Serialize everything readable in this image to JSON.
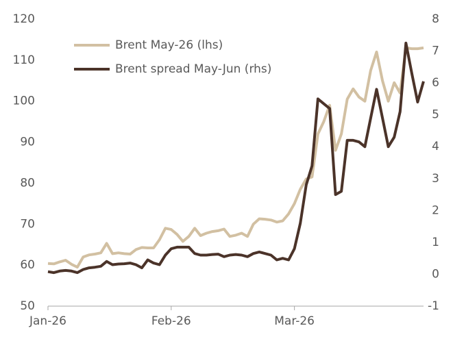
{
  "chart_data": {
    "type": "line",
    "x": [
      0,
      1,
      2,
      3,
      4,
      5,
      6,
      7,
      8,
      9,
      10,
      11,
      12,
      13,
      14,
      15,
      16,
      17,
      18,
      19,
      20,
      21,
      22,
      23,
      24,
      25,
      26,
      27,
      28,
      29,
      30,
      31,
      32,
      33,
      34,
      35,
      36,
      37,
      38,
      39,
      40,
      41,
      42,
      43,
      44,
      45,
      46,
      47,
      48,
      49,
      50,
      51,
      52,
      53,
      54,
      55,
      56,
      57,
      58,
      59,
      60,
      61,
      62,
      63,
      64
    ],
    "series": [
      {
        "name": "Brent May-26 (lhs)",
        "color": "#d2c0a2",
        "axis": "y",
        "values": [
          60.4,
          60.3,
          60.8,
          61.2,
          60.2,
          59.5,
          62.0,
          62.5,
          62.7,
          63.0,
          65.3,
          62.8,
          63.0,
          62.8,
          62.7,
          63.8,
          64.3,
          64.2,
          64.2,
          66.2,
          69.0,
          68.7,
          67.5,
          65.8,
          67.0,
          69.0,
          67.2,
          67.8,
          68.2,
          68.4,
          68.8,
          67.0,
          67.3,
          67.8,
          67.0,
          70.0,
          71.3,
          71.2,
          71.0,
          70.5,
          70.8,
          72.5,
          75.0,
          78.5,
          81.0,
          81.5,
          92.0,
          95.0,
          99.0,
          88.0,
          92.0,
          100.5,
          103.0,
          101.0,
          100.0,
          107.5,
          112.0,
          105.0,
          100.0,
          104.5,
          102.0,
          113.0,
          112.8,
          112.8,
          113.0
        ]
      },
      {
        "name": "Brent spread May-Jun (rhs)",
        "color": "#4b3329",
        "axis": "y2",
        "values": [
          0.08,
          0.05,
          0.1,
          0.12,
          0.1,
          0.05,
          0.15,
          0.2,
          0.22,
          0.25,
          0.4,
          0.3,
          0.32,
          0.33,
          0.35,
          0.3,
          0.2,
          0.45,
          0.35,
          0.3,
          0.6,
          0.8,
          0.85,
          0.85,
          0.85,
          0.65,
          0.6,
          0.6,
          0.62,
          0.63,
          0.55,
          0.6,
          0.62,
          0.6,
          0.55,
          0.65,
          0.7,
          0.65,
          0.6,
          0.45,
          0.5,
          0.45,
          0.8,
          1.6,
          2.8,
          3.4,
          5.5,
          5.35,
          5.2,
          2.5,
          2.6,
          4.2,
          4.2,
          4.15,
          4.0,
          4.9,
          5.8,
          4.9,
          4.0,
          4.3,
          5.1,
          7.25,
          6.3,
          5.4,
          6.05
        ]
      }
    ],
    "xlim": [
      0,
      64
    ],
    "xticks": [
      {
        "value": 0,
        "label": "Jan-26"
      },
      {
        "value": 21,
        "label": "Feb-26"
      },
      {
        "value": 42,
        "label": "Mar-26"
      }
    ],
    "ylim": [
      50,
      120
    ],
    "yticks": [
      50,
      60,
      70,
      80,
      90,
      100,
      110,
      120
    ],
    "y2lim": [
      -1,
      8
    ],
    "y2ticks": [
      -1,
      0,
      1,
      2,
      3,
      4,
      5,
      6,
      7,
      8
    ],
    "grid": false,
    "legend": "upper left"
  }
}
